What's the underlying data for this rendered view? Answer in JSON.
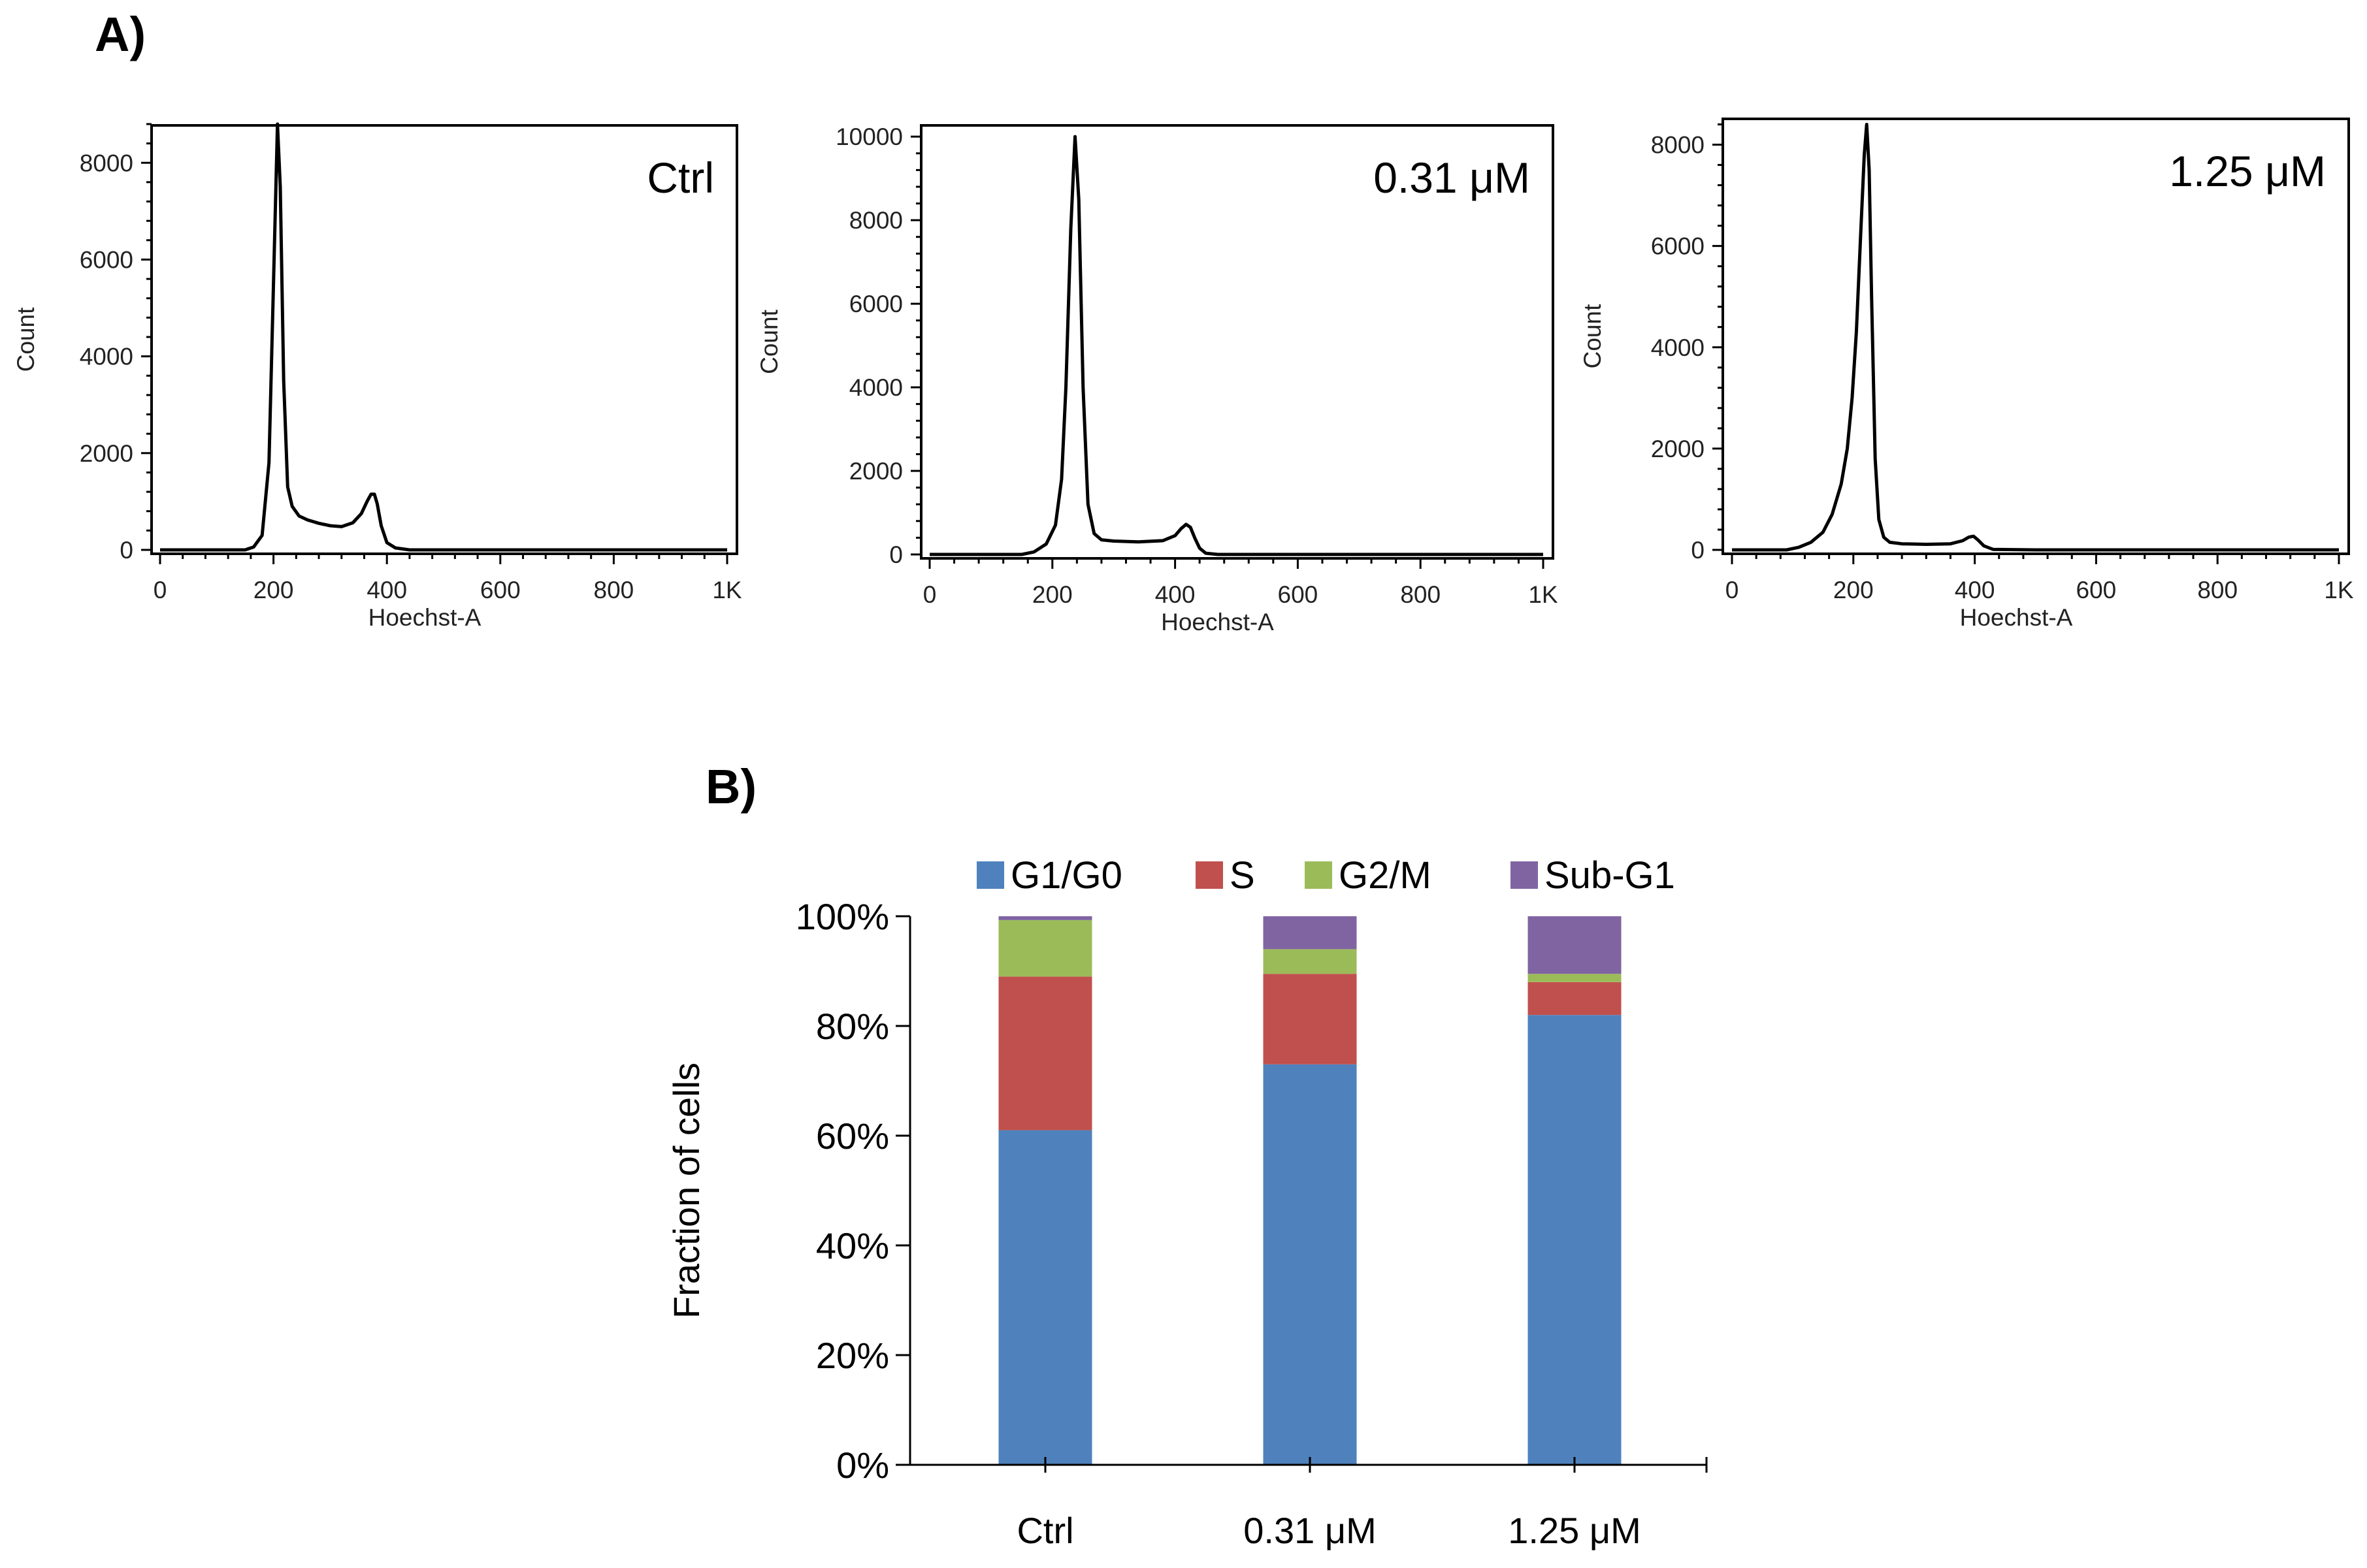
{
  "panel_labels": {
    "a": "A)",
    "b": "B)"
  },
  "chart_data": [
    {
      "type": "line",
      "title": "Ctrl",
      "xlabel": "Hoechst-A",
      "ylabel": "Count",
      "xlim": [
        0,
        1000
      ],
      "ylim": [
        0,
        8800
      ],
      "xticks": [
        0,
        200,
        400,
        600,
        800,
        1000
      ],
      "xtick_labels": [
        "0",
        "200",
        "400",
        "600",
        "800",
        "1K"
      ],
      "yticks": [
        0,
        2000,
        4000,
        6000,
        8000
      ],
      "ytick_labels": [
        "0",
        "2000",
        "4000",
        "6000",
        "8000"
      ],
      "series": [
        {
          "name": "Ctrl",
          "x": [
            0,
            150,
            165,
            180,
            192,
            200,
            207,
            212,
            218,
            225,
            233,
            245,
            260,
            280,
            300,
            320,
            340,
            355,
            365,
            372,
            378,
            383,
            390,
            400,
            415,
            440,
            500,
            600,
            800,
            1000
          ],
          "y": [
            0,
            0,
            60,
            300,
            1800,
            5500,
            8800,
            7500,
            3500,
            1300,
            900,
            700,
            620,
            550,
            500,
            480,
            560,
            750,
            1000,
            1150,
            1150,
            950,
            500,
            150,
            40,
            0,
            0,
            0,
            0,
            0
          ]
        }
      ]
    },
    {
      "type": "line",
      "title": "0.31 μM",
      "xlabel": "Hoechst-A",
      "ylabel": "Count",
      "xlim": [
        0,
        1000
      ],
      "ylim": [
        0,
        10300
      ],
      "xticks": [
        0,
        200,
        400,
        600,
        800,
        1000
      ],
      "xtick_labels": [
        "0",
        "200",
        "400",
        "600",
        "800",
        "1K"
      ],
      "yticks": [
        0,
        2000,
        4000,
        6000,
        8000,
        10000
      ],
      "ytick_labels": [
        "0",
        "2000",
        "4000",
        "6000",
        "8000",
        "10000"
      ],
      "series": [
        {
          "name": "0.31 μM",
          "x": [
            0,
            150,
            170,
            190,
            205,
            215,
            222,
            230,
            237,
            243,
            250,
            258,
            268,
            280,
            300,
            340,
            380,
            400,
            410,
            418,
            425,
            432,
            440,
            450,
            470,
            500,
            600,
            800,
            1000
          ],
          "y": [
            0,
            0,
            60,
            250,
            700,
            1800,
            4000,
            7800,
            10000,
            8500,
            4000,
            1200,
            500,
            350,
            320,
            300,
            330,
            450,
            620,
            720,
            650,
            400,
            150,
            30,
            0,
            0,
            0,
            0,
            0
          ]
        }
      ]
    },
    {
      "type": "line",
      "title": "1.25 μM",
      "xlabel": "Hoechst-A",
      "ylabel": "Count",
      "xlim": [
        0,
        1000
      ],
      "ylim": [
        0,
        8600
      ],
      "xticks": [
        0,
        200,
        400,
        600,
        800,
        1000
      ],
      "xtick_labels": [
        "0",
        "200",
        "400",
        "600",
        "800",
        "1K"
      ],
      "yticks": [
        0,
        2000,
        4000,
        6000,
        8000
      ],
      "ytick_labels": [
        "0",
        "2000",
        "4000",
        "6000",
        "8000"
      ],
      "series": [
        {
          "name": "1.25 μM",
          "x": [
            0,
            90,
            110,
            130,
            150,
            165,
            180,
            190,
            198,
            205,
            212,
            218,
            222,
            226,
            230,
            236,
            242,
            250,
            260,
            280,
            320,
            360,
            380,
            390,
            398,
            405,
            415,
            430,
            500,
            600,
            800,
            1000
          ],
          "y": [
            0,
            0,
            50,
            150,
            350,
            700,
            1300,
            2000,
            3000,
            4300,
            6200,
            7800,
            8400,
            7500,
            5000,
            1800,
            600,
            250,
            150,
            120,
            110,
            120,
            180,
            250,
            270,
            200,
            80,
            10,
            0,
            0,
            0,
            0
          ]
        }
      ]
    },
    {
      "type": "bar",
      "stacked": true,
      "categories": [
        "Ctrl",
        "0.31 μM",
        "1.25 μM"
      ],
      "series": [
        {
          "name": "G1/G0",
          "color": "#4F81BD",
          "values": [
            61,
            73,
            82
          ]
        },
        {
          "name": "S",
          "color": "#C0504D",
          "values": [
            28,
            16.5,
            6
          ]
        },
        {
          "name": "G2/M",
          "color": "#9BBB59",
          "values": [
            10.3,
            4.5,
            1.5
          ]
        },
        {
          "name": "Sub-G1",
          "color": "#8064A2",
          "values": [
            0.7,
            6,
            10.5
          ]
        }
      ],
      "xlabel": "",
      "ylabel": "Fraction of cells",
      "ylim": [
        0,
        100
      ],
      "yticks": [
        0,
        20,
        40,
        60,
        80,
        100
      ],
      "ytick_labels": [
        "0%",
        "20%",
        "40%",
        "60%",
        "80%",
        "100%"
      ],
      "legend": "top"
    }
  ]
}
